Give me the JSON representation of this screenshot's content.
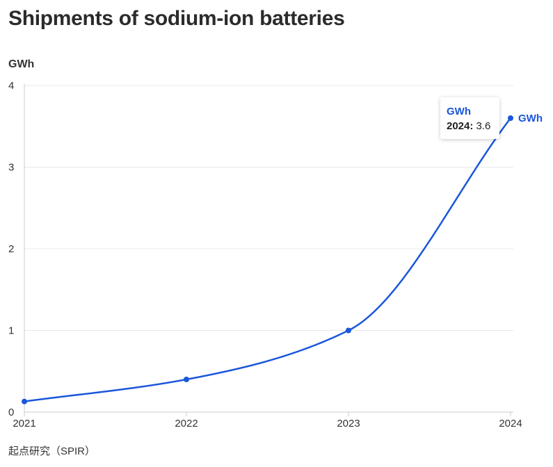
{
  "title": "Shipments of sodium-ion batteries",
  "y_unit_label": "GWh",
  "source": "起点研究（SPIR）",
  "colors": {
    "series": "#1a56db",
    "grid": "#e8e8e8",
    "axis": "#cccccc",
    "text": "#333333"
  },
  "tooltip": {
    "series": "GWh",
    "year": "2024:",
    "value": "3.6"
  },
  "chart_data": {
    "type": "line",
    "title": "Shipments of sodium-ion batteries",
    "ylabel": "GWh",
    "xlabel": "",
    "x": [
      "2021",
      "2022",
      "2023",
      "2024"
    ],
    "x_ticks": [
      "2021",
      "2022",
      "2023",
      "2024"
    ],
    "y_ticks": [
      "0",
      "1",
      "2",
      "3",
      "4"
    ],
    "ylim": [
      0,
      4
    ],
    "grid": true,
    "series": [
      {
        "name": "GWh",
        "values": [
          0.13,
          0.4,
          1.0,
          3.6
        ]
      }
    ]
  }
}
